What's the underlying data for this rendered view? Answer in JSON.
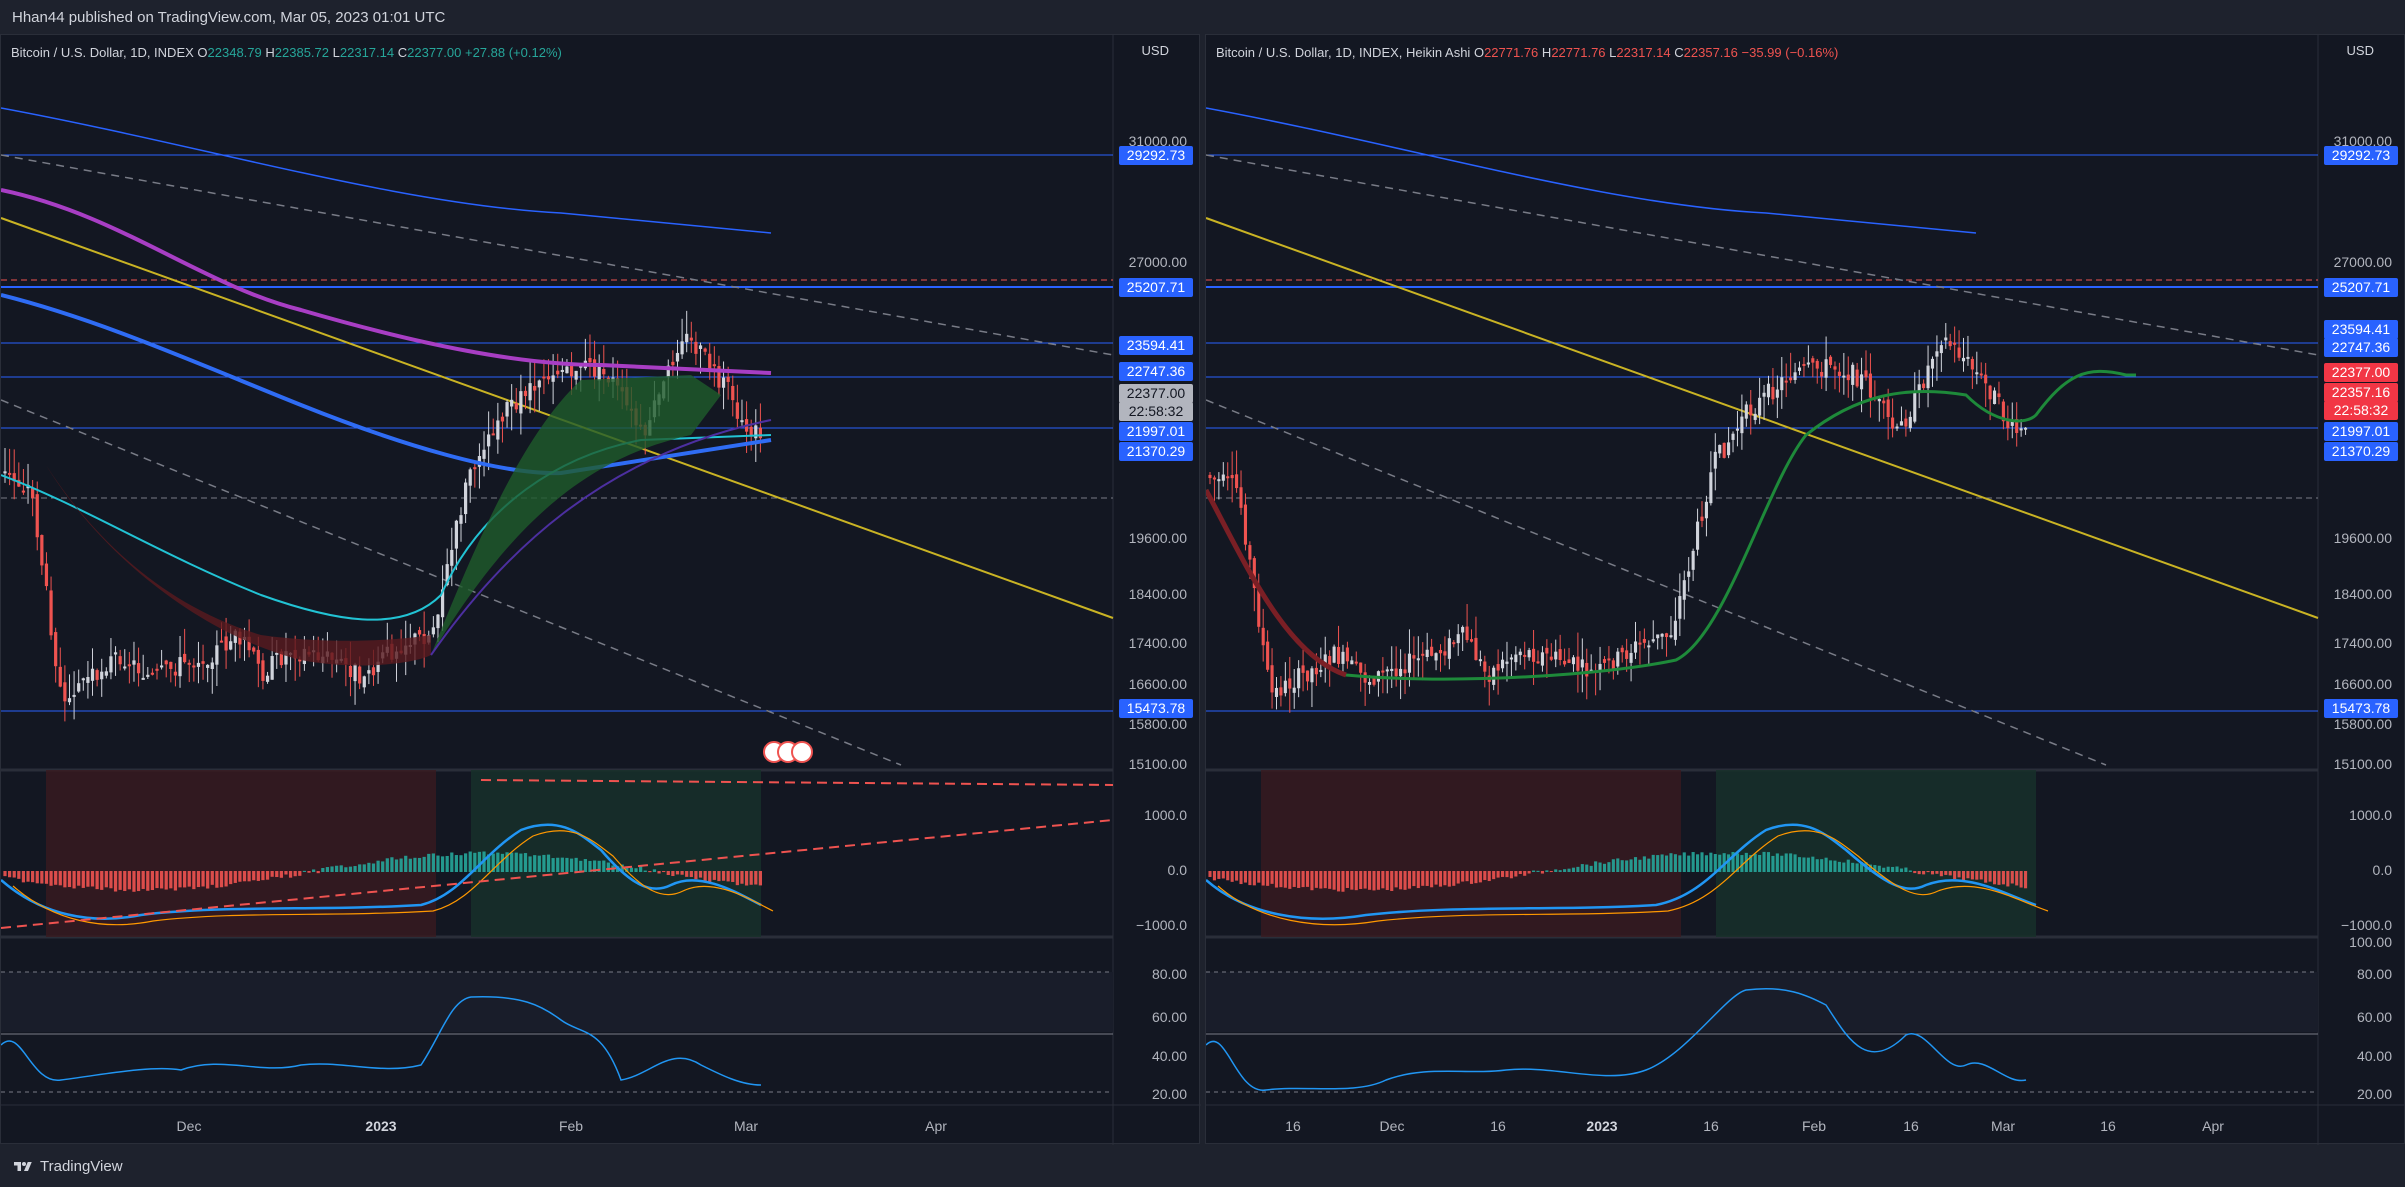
{
  "header": {
    "published": "Hhan44 published on TradingView.com, Mar 05, 2023 01:01 UTC"
  },
  "footer": {
    "brand": "TradingView"
  },
  "colors": {
    "background": "#131722",
    "page": "#1e222d",
    "up": "#26a69a",
    "down": "#ef5350",
    "tag_blue": "#2962ff",
    "tag_red": "#f23645",
    "yellow": "#c9b324",
    "magenta": "#a83ec4",
    "cyan": "#22c3d4"
  },
  "charts": [
    {
      "id": "left",
      "legend": {
        "symbol": "Bitcoin / U.S. Dollar, 1D, INDEX",
        "o_label": "O",
        "o": "22348.79",
        "h_label": "H",
        "h": "22385.72",
        "l_label": "L",
        "l": "22317.14",
        "c_label": "C",
        "c": "22377.00",
        "change": "+27.88 (+0.12%)"
      },
      "currency": "USD",
      "price_axis": [
        "31000.00",
        "27000.00",
        "19600.00",
        "18400.00",
        "17400.00",
        "16600.00",
        "15800.00",
        "15100.00"
      ],
      "price_tags": [
        {
          "text": "29292.73",
          "kind": "blue"
        },
        {
          "text": "25207.71",
          "kind": "blue"
        },
        {
          "text": "23594.41",
          "kind": "blue"
        },
        {
          "text": "22747.36",
          "kind": "blue"
        },
        {
          "text": "22377.00",
          "kind": "gray"
        },
        {
          "text": "22:58:32",
          "kind": "gray"
        },
        {
          "text": "21997.01",
          "kind": "blue"
        },
        {
          "text": "21370.29",
          "kind": "blue"
        },
        {
          "text": "15473.78",
          "kind": "blue"
        }
      ],
      "macd_axis": [
        "1000.0",
        "0.0",
        "−1000.0"
      ],
      "rsi_axis": [
        "80.00",
        "60.00",
        "40.00",
        "20.00"
      ],
      "time_axis": [
        {
          "text": "Dec",
          "bold": false
        },
        {
          "text": "2023",
          "bold": true
        },
        {
          "text": "Feb",
          "bold": false
        },
        {
          "text": "Mar",
          "bold": false
        },
        {
          "text": "Apr",
          "bold": false
        }
      ]
    },
    {
      "id": "right",
      "legend": {
        "symbol": "Bitcoin / U.S. Dollar, 1D, INDEX, Heikin Ashi",
        "o_label": "O",
        "o": "22771.76",
        "h_label": "H",
        "h": "22771.76",
        "l_label": "L",
        "l": "22317.14",
        "c_label": "C",
        "c": "22357.16",
        "change": "−35.99 (−0.16%)"
      },
      "currency": "USD",
      "price_axis": [
        "31000.00",
        "27000.00",
        "19600.00",
        "18400.00",
        "17400.00",
        "16600.00",
        "15800.00",
        "15100.00"
      ],
      "price_tags": [
        {
          "text": "29292.73",
          "kind": "blue"
        },
        {
          "text": "25207.71",
          "kind": "blue"
        },
        {
          "text": "23594.41",
          "kind": "blue"
        },
        {
          "text": "22747.36",
          "kind": "blue"
        },
        {
          "text": "22377.00",
          "kind": "red"
        },
        {
          "text": "22357.16",
          "kind": "red"
        },
        {
          "text": "22:58:32",
          "kind": "red"
        },
        {
          "text": "21997.01",
          "kind": "blue"
        },
        {
          "text": "21370.29",
          "kind": "blue"
        },
        {
          "text": "15473.78",
          "kind": "blue"
        }
      ],
      "macd_axis": [
        "1000.0",
        "0.0",
        "−1000.0"
      ],
      "rsi_axis": [
        "100.00",
        "80.00",
        "60.00",
        "40.00",
        "20.00"
      ],
      "time_axis": [
        {
          "text": "16",
          "bold": false
        },
        {
          "text": "Dec",
          "bold": false
        },
        {
          "text": "16",
          "bold": false
        },
        {
          "text": "2023",
          "bold": true
        },
        {
          "text": "16",
          "bold": false
        },
        {
          "text": "Feb",
          "bold": false
        },
        {
          "text": "16",
          "bold": false
        },
        {
          "text": "Mar",
          "bold": false
        },
        {
          "text": "16",
          "bold": false
        },
        {
          "text": "Apr",
          "bold": false
        }
      ]
    }
  ]
}
